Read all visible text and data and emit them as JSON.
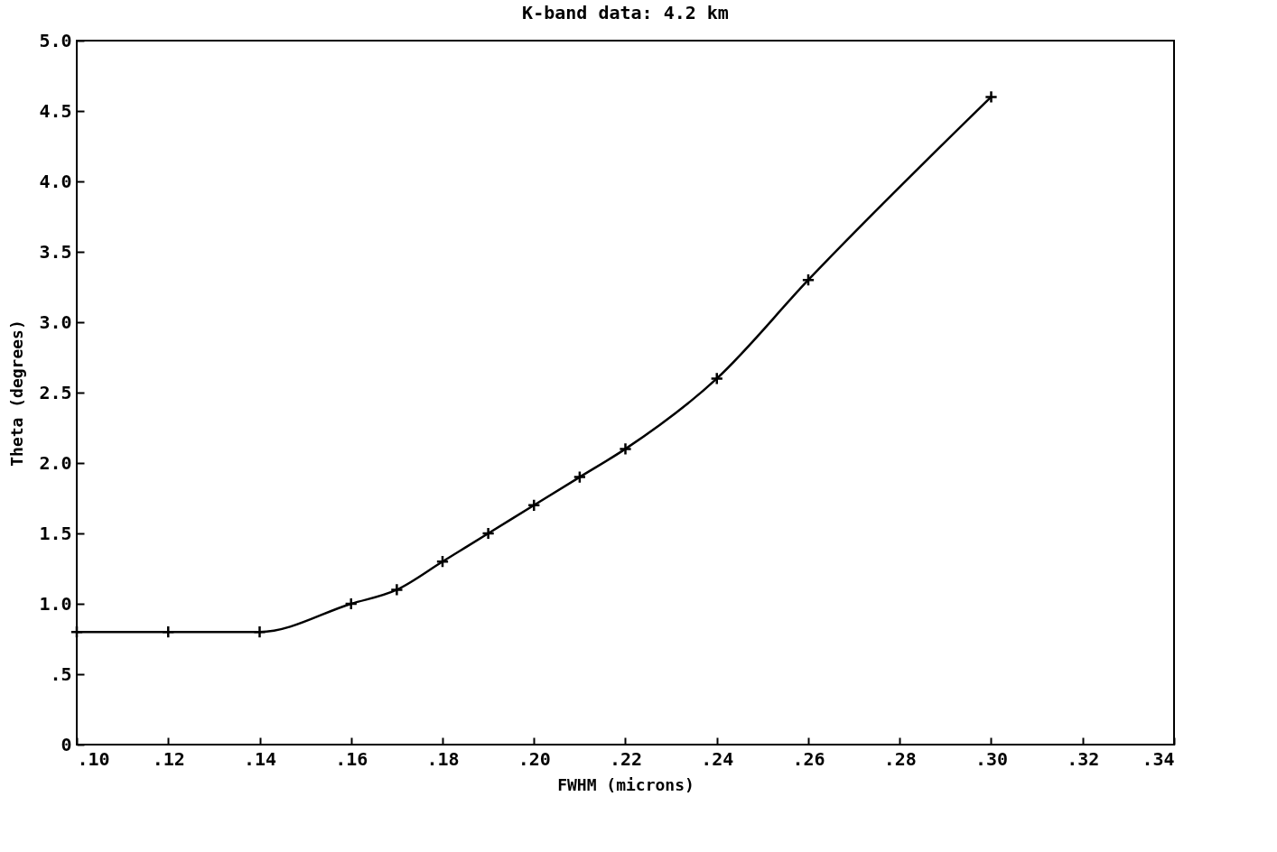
{
  "chart_data": {
    "type": "line",
    "title": "K-band data: 4.2 km",
    "xlabel": "FWHM (microns)",
    "ylabel": "Theta (degrees)",
    "x": [
      0.1,
      0.12,
      0.14,
      0.16,
      0.17,
      0.18,
      0.19,
      0.2,
      0.21,
      0.22,
      0.24,
      0.26,
      0.3
    ],
    "series": [
      {
        "color": "#000000",
        "values": [
          0.8,
          0.8,
          0.8,
          1.0,
          1.1,
          1.3,
          1.5,
          1.7,
          1.9,
          2.1,
          2.6,
          3.3,
          4.6
        ]
      }
    ],
    "xlim": [
      0.1,
      0.34
    ],
    "xticks": [
      {
        "value": 0.1,
        "label": ".10"
      },
      {
        "value": 0.12,
        "label": ".12"
      },
      {
        "value": 0.14,
        "label": ".14"
      },
      {
        "value": 0.16,
        "label": ".16"
      },
      {
        "value": 0.18,
        "label": ".18"
      },
      {
        "value": 0.2,
        "label": ".20"
      },
      {
        "value": 0.22,
        "label": ".22"
      },
      {
        "value": 0.24,
        "label": ".24"
      },
      {
        "value": 0.26,
        "label": ".26"
      },
      {
        "value": 0.28,
        "label": ".28"
      },
      {
        "value": 0.3,
        "label": ".30"
      },
      {
        "value": 0.32,
        "label": ".32"
      },
      {
        "value": 0.34,
        "label": ".34"
      }
    ],
    "ylim": [
      0,
      5
    ],
    "yticks": [
      0,
      {
        "value": 0.5,
        "label": ".5"
      },
      {
        "value": 1,
        "label": "1.0"
      },
      1.5,
      {
        "value": 2,
        "label": "2.0"
      },
      2.5,
      {
        "value": 3,
        "label": "3.0"
      },
      3.5,
      {
        "value": 4,
        "label": "4.0"
      },
      4.5,
      {
        "value": 5,
        "label": "5.0"
      }
    ],
    "marker": "cross",
    "line_style": "solid"
  }
}
